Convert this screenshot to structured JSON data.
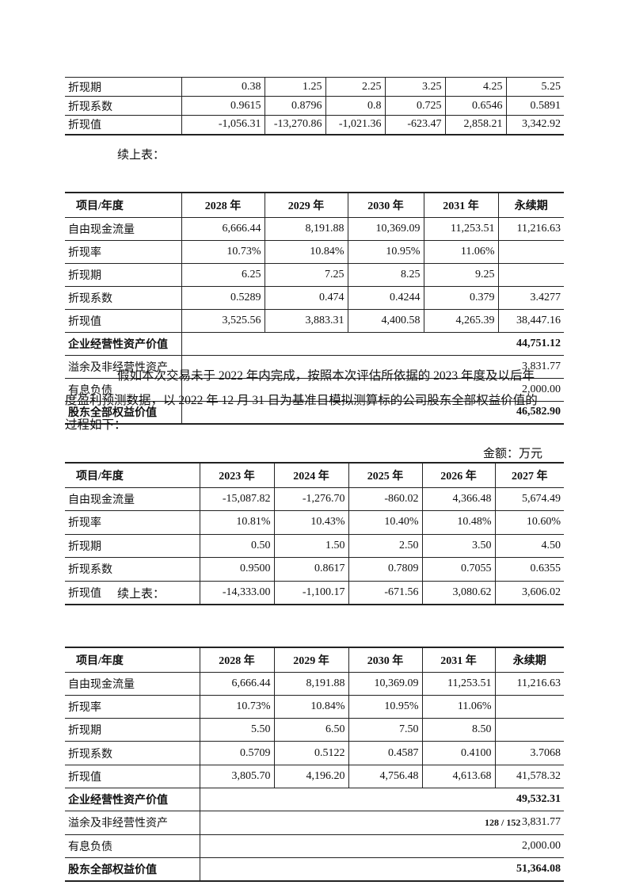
{
  "table1": {
    "rows": [
      {
        "label": "折现期",
        "values": [
          "0.38",
          "1.25",
          "2.25",
          "3.25",
          "4.25",
          "5.25"
        ]
      },
      {
        "label": "折现系数",
        "values": [
          "0.9615",
          "0.8796",
          "0.8",
          "0.725",
          "0.6546",
          "0.5891"
        ]
      },
      {
        "label": "折现值",
        "values": [
          "-1,056.31",
          "-13,270.86",
          "-1,021.36",
          "-623.47",
          "2,858.21",
          "3,342.92"
        ]
      }
    ]
  },
  "continued_label_1": "续上表：",
  "table2": {
    "header": [
      "项目/年度",
      "2028 年",
      "2029 年",
      "2030 年",
      "2031 年",
      "永续期"
    ],
    "rows": [
      {
        "label": "自由现金流量",
        "values": [
          "6,666.44",
          "8,191.88",
          "10,369.09",
          "11,253.51",
          "11,216.63"
        ]
      },
      {
        "label": "折现率",
        "values": [
          "10.73%",
          "10.84%",
          "10.95%",
          "11.06%",
          ""
        ]
      },
      {
        "label": "折现期",
        "values": [
          "6.25",
          "7.25",
          "8.25",
          "9.25",
          ""
        ]
      },
      {
        "label": " 折现系数",
        "values": [
          "0.5289",
          "0.474",
          "0.4244",
          "0.379",
          "3.4277"
        ]
      },
      {
        "label": "折现值",
        "values": [
          "3,525.56",
          "3,883.31",
          "4,400.58",
          "4,265.39",
          "38,447.16"
        ]
      }
    ],
    "summary": [
      {
        "label": "企业经营性资产价值",
        "value": "44,751.12",
        "bold": true
      },
      {
        "label": "溢余及非经营性资产",
        "value": "3,831.77",
        "bold": false
      },
      {
        "label": "有息负债",
        "value": "2,000.00",
        "bold": false
      },
      {
        "label": "股东全部权益价值",
        "value": "46,582.90",
        "bold": true
      }
    ]
  },
  "paragraph": "假如本次交易未于 2022 年内完成，按照本次评估所依据的 2023 年度及以后年度盈利预测数据，以 2022 年 12 月 31 日为基准日模拟测算标的公司股东全部权益价值的过程如下：",
  "unit_label": "金额：万元",
  "table3": {
    "header": [
      "项目/年度",
      "2023 年",
      "2024 年",
      "2025 年",
      "2026 年",
      "2027 年"
    ],
    "rows": [
      {
        "label": "自由现金流量",
        "values": [
          "-15,087.82",
          "-1,276.70",
          "-860.02",
          "4,366.48",
          "5,674.49"
        ]
      },
      {
        "label": "折现率",
        "values": [
          "10.81%",
          "10.43%",
          "10.40%",
          "10.48%",
          "10.60%"
        ]
      },
      {
        "label": "折现期",
        "values": [
          "0.50",
          "1.50",
          "2.50",
          "3.50",
          "4.50"
        ]
      },
      {
        "label": "折现系数",
        "values": [
          "0.9500",
          "0.8617",
          "0.7809",
          "0.7055",
          "0.6355"
        ]
      },
      {
        "label": "折现值",
        "values": [
          "-14,333.00",
          "-1,100.17",
          "-671.56",
          "3,080.62",
          "3,606.02"
        ]
      }
    ]
  },
  "continued_label_2": "续上表：",
  "table4": {
    "header": [
      "项目/年度",
      "2028 年",
      "2029 年",
      "2030 年",
      "2031 年",
      "永续期"
    ],
    "rows": [
      {
        "label": "自由现金流量",
        "values": [
          "6,666.44",
          "8,191.88",
          "10,369.09",
          "11,253.51",
          "11,216.63"
        ]
      },
      {
        "label": "折现率",
        "values": [
          "10.73%",
          "10.84%",
          "10.95%",
          "11.06%",
          ""
        ]
      },
      {
        "label": "折现期",
        "values": [
          "5.50",
          "6.50",
          "7.50",
          "8.50",
          ""
        ]
      },
      {
        "label": " 折现系数",
        "values": [
          "0.5709",
          "0.5122",
          "0.4587",
          "0.4100",
          "3.7068"
        ]
      },
      {
        "label": "折现值",
        "values": [
          "3,805.70",
          "4,196.20",
          "4,756.48",
          "4,613.68",
          "41,578.32"
        ]
      }
    ],
    "summary": [
      {
        "label": "企业经营性资产价值",
        "value": "49,532.31",
        "bold": true
      },
      {
        "label": "溢余及非经营性资产",
        "value": "3,831.77",
        "bold": false
      },
      {
        "label": "有息负债",
        "value": "2,000.00",
        "bold": false
      },
      {
        "label": "股东全部权益价值",
        "value": "51,364.08",
        "bold": true
      }
    ]
  },
  "page_number": "128 / 152"
}
